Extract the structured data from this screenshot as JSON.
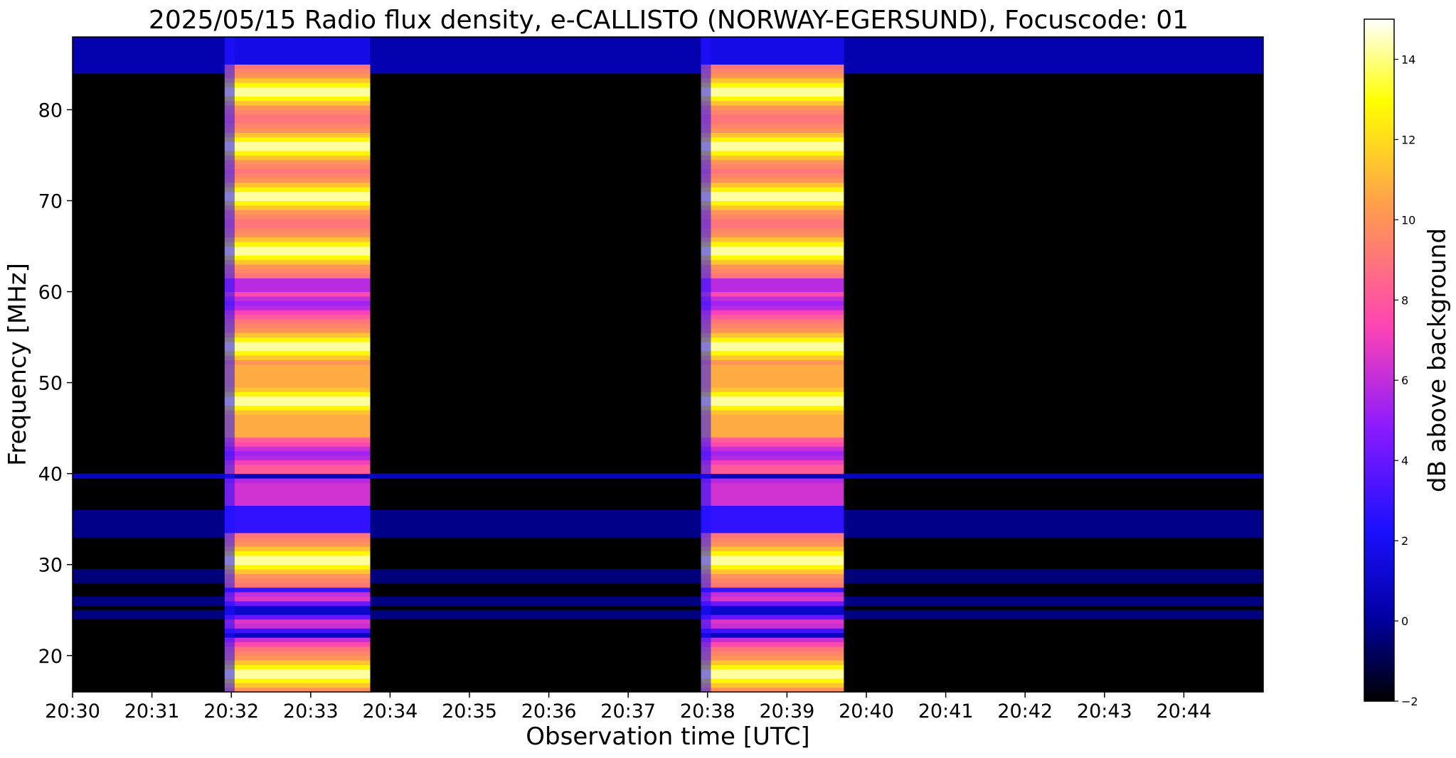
{
  "chart_data": {
    "type": "heatmap",
    "title": "2025/05/15  Radio flux density, e-CALLISTO (NORWAY-EGERSUND), Focuscode: 01",
    "xlabel": "Observation time [UTC]",
    "ylabel": "Frequency [MHz]",
    "x_ticks": [
      "20:30",
      "20:31",
      "20:32",
      "20:33",
      "20:34",
      "20:35",
      "20:36",
      "20:37",
      "20:38",
      "20:39",
      "20:40",
      "20:41",
      "20:42",
      "20:43",
      "20:44"
    ],
    "x_range_minutes": [
      0,
      15
    ],
    "y_ticks": [
      20,
      30,
      40,
      50,
      60,
      70,
      80
    ],
    "ylim": [
      16,
      88
    ],
    "colorbar": {
      "label": "dB above background",
      "ticks": [
        -2,
        0,
        2,
        4,
        6,
        8,
        10,
        12,
        14
      ],
      "range": [
        -2,
        15
      ],
      "colormap": "gnuplot2"
    },
    "bursts": [
      {
        "start": "20:31:55",
        "end": "20:33:45"
      },
      {
        "start": "20:37:55",
        "end": "20:39:43"
      }
    ],
    "bright_bands_mhz": [
      82,
      76,
      70.5,
      64.5,
      54,
      48,
      30.5,
      18
    ],
    "persistent_band_mhz": 39.7
  }
}
